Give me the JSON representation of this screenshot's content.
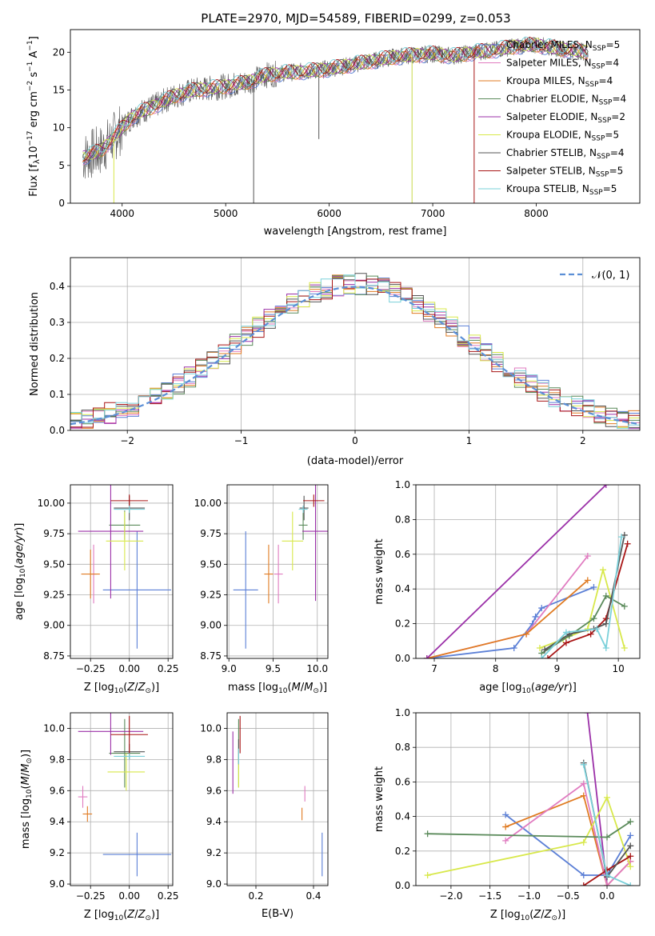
{
  "figure_title": "PLATE=2970, MJD=54589, FIBERID=0299, z=0.053",
  "colors": {
    "chabrier_miles": "#5b7fd6",
    "salpeter_miles": "#e07bc0",
    "kroupa_miles": "#e07b22",
    "chabrier_elodie": "#5a8a5a",
    "salpeter_elodie": "#9b30a8",
    "kroupa_elodie": "#d8e84a",
    "chabrier_stelib": "#555555",
    "salpeter_stelib": "#a81414",
    "kroupa_stelib": "#7ad0da"
  },
  "chart_data": [
    {
      "id": "spectrum",
      "type": "line",
      "xlabel": "wavelength [Angstrom, rest frame]",
      "ylabel": "Flux [f",
      "xlim": [
        3500,
        9000
      ],
      "ylim": [
        0,
        23
      ],
      "xticks": [
        4000,
        5000,
        6000,
        7000,
        8000
      ],
      "yticks": [
        0,
        5,
        10,
        15,
        20
      ],
      "legend_position": "right",
      "legend": [
        {
          "key": "chabrier_miles",
          "label": "Chabrier MILES, N",
          "n": "5"
        },
        {
          "key": "salpeter_miles",
          "label": "Salpeter MILES, N",
          "n": "4"
        },
        {
          "key": "kroupa_miles",
          "label": "Kroupa MILES, N",
          "n": "4"
        },
        {
          "key": "chabrier_elodie",
          "label": "Chabrier ELODIE, N",
          "n": "4"
        },
        {
          "key": "salpeter_elodie",
          "label": "Salpeter ELODIE, N",
          "n": "2"
        },
        {
          "key": "kroupa_elodie",
          "label": "Kroupa ELODIE, N",
          "n": "5"
        },
        {
          "key": "chabrier_stelib",
          "label": "Chabrier STELIB, N",
          "n": "4"
        },
        {
          "key": "salpeter_stelib",
          "label": "Salpeter STELIB, N",
          "n": "5"
        },
        {
          "key": "kroupa_stelib",
          "label": "Kroupa STELIB, N",
          "n": "5"
        }
      ],
      "continuum": [
        [
          3600,
          6
        ],
        [
          3700,
          6.5
        ],
        [
          3800,
          7
        ],
        [
          3900,
          8.5
        ],
        [
          4000,
          10
        ],
        [
          4100,
          11.5
        ],
        [
          4200,
          12.2
        ],
        [
          4300,
          12.8
        ],
        [
          4400,
          13.5
        ],
        [
          4500,
          14.2
        ],
        [
          4700,
          15
        ],
        [
          4900,
          15.3
        ],
        [
          5000,
          15.5
        ],
        [
          5200,
          16
        ],
        [
          5400,
          17
        ],
        [
          5600,
          17.3
        ],
        [
          5800,
          17.5
        ],
        [
          6000,
          17.8
        ],
        [
          6200,
          18.3
        ],
        [
          6400,
          18.8
        ],
        [
          6600,
          19.3
        ],
        [
          6800,
          19.6
        ],
        [
          7000,
          19.8
        ],
        [
          7200,
          19.5
        ],
        [
          7400,
          20
        ],
        [
          7600,
          20.3
        ],
        [
          7800,
          20.8
        ],
        [
          8000,
          21
        ],
        [
          8200,
          20.5
        ],
        [
          8400,
          20.2
        ],
        [
          8500,
          20
        ]
      ],
      "spikes": [
        [
          5270,
          0
        ],
        [
          6800,
          0
        ],
        [
          7400,
          0
        ],
        [
          3920,
          0
        ],
        [
          5900,
          8.5
        ]
      ]
    },
    {
      "id": "residuals",
      "type": "step",
      "xlabel": "(data-model)/error",
      "ylabel": "Normed distribution",
      "xlim": [
        -2.5,
        2.5
      ],
      "ylim": [
        0,
        0.48
      ],
      "xticks": [
        -2,
        -1,
        0,
        1,
        2
      ],
      "yticks": [
        0.0,
        0.1,
        0.2,
        0.3,
        0.4
      ],
      "reference_label": "𝒩(0, 1)",
      "legend_position": "top-right"
    },
    {
      "id": "age_vs_Z",
      "type": "errorbar",
      "xlabel": "Z [log",
      "ylabel": "age  [log",
      "xlim": [
        -0.38,
        0.28
      ],
      "ylim": [
        8.73,
        10.15
      ],
      "xticks": [
        -0.25,
        0.0,
        0.25
      ],
      "yticks": [
        8.75,
        9.0,
        9.25,
        9.5,
        9.75,
        10.0
      ],
      "points": [
        {
          "key": "chabrier_miles",
          "x": 0.05,
          "y": 9.29,
          "xerr": 0.22,
          "yerr": 0.48
        },
        {
          "key": "salpeter_miles",
          "x": -0.23,
          "y": 9.42,
          "xerr": 0.02,
          "yerr": 0.24
        },
        {
          "key": "kroupa_miles",
          "x": -0.25,
          "y": 9.42,
          "xerr": 0.06,
          "yerr": 0.2
        },
        {
          "key": "chabrier_elodie",
          "x": -0.03,
          "y": 9.82,
          "xerr": 0.1,
          "yerr": 0.12
        },
        {
          "key": "salpeter_elodie",
          "x": -0.12,
          "y": 9.77,
          "xerr": 0.21,
          "yerr": 0.55
        },
        {
          "key": "kroupa_elodie",
          "x": -0.03,
          "y": 9.69,
          "xerr": 0.12,
          "yerr": 0.24
        },
        {
          "key": "chabrier_stelib",
          "x": 0.0,
          "y": 9.96,
          "xerr": 0.1,
          "yerr": 0.1
        },
        {
          "key": "salpeter_stelib",
          "x": 0.0,
          "y": 10.02,
          "xerr": 0.12,
          "yerr": 0.05
        },
        {
          "key": "kroupa_stelib",
          "x": 0.0,
          "y": 9.95,
          "xerr": 0.1,
          "yerr": 0.03
        }
      ]
    },
    {
      "id": "age_vs_mass",
      "type": "errorbar",
      "xlabel": "mass [log",
      "xlim": [
        8.98,
        10.12
      ],
      "ylim": [
        8.73,
        10.15
      ],
      "xticks": [
        9.0,
        9.5,
        10.0
      ],
      "yticks": [
        8.75,
        9.0,
        9.25,
        9.5,
        9.75,
        10.0
      ],
      "points": [
        {
          "key": "chabrier_miles",
          "x": 9.19,
          "y": 9.29,
          "xerr": 0.14,
          "yerr": 0.48
        },
        {
          "key": "salpeter_miles",
          "x": 9.56,
          "y": 9.42,
          "xerr": 0.05,
          "yerr": 0.24
        },
        {
          "key": "kroupa_miles",
          "x": 9.45,
          "y": 9.42,
          "xerr": 0.05,
          "yerr": 0.24
        },
        {
          "key": "chabrier_elodie",
          "x": 9.84,
          "y": 9.82,
          "xerr": 0.05,
          "yerr": 0.12
        },
        {
          "key": "salpeter_elodie",
          "x": 9.98,
          "y": 9.77,
          "xerr": 0.15,
          "yerr": 0.57
        },
        {
          "key": "kroupa_elodie",
          "x": 9.72,
          "y": 9.69,
          "xerr": 0.12,
          "yerr": 0.24
        },
        {
          "key": "chabrier_stelib",
          "x": 9.85,
          "y": 9.96,
          "xerr": 0.05,
          "yerr": 0.1
        },
        {
          "key": "salpeter_stelib",
          "x": 9.96,
          "y": 10.02,
          "xerr": 0.12,
          "yerr": 0.05
        },
        {
          "key": "kroupa_stelib",
          "x": 9.84,
          "y": 9.95,
          "xerr": 0.05,
          "yerr": 0.03
        }
      ]
    },
    {
      "id": "weight_vs_age",
      "type": "line",
      "xlabel": "age  [log",
      "ylabel": "mass weight",
      "xlim": [
        6.7,
        10.35
      ],
      "ylim": [
        0,
        1
      ],
      "xticks": [
        7,
        8,
        9,
        10
      ],
      "yticks": [
        0.0,
        0.2,
        0.4,
        0.6,
        0.8,
        1.0
      ],
      "series": [
        {
          "key": "chabrier_miles",
          "x": [
            6.88,
            8.3,
            8.6,
            8.65,
            8.75,
            9.6
          ],
          "y": [
            0.0,
            0.06,
            0.2,
            0.24,
            0.29,
            0.41
          ]
        },
        {
          "key": "salpeter_miles",
          "x": [
            6.88,
            8.5,
            9.5
          ],
          "y": [
            0.0,
            0.14,
            0.59
          ]
        },
        {
          "key": "kroupa_miles",
          "x": [
            6.88,
            8.5,
            9.5
          ],
          "y": [
            0.0,
            0.14,
            0.45
          ]
        },
        {
          "key": "salpeter_elodie",
          "x": [
            6.88,
            9.8
          ],
          "y": [
            0.0,
            1.0
          ]
        },
        {
          "key": "kroupa_elodie",
          "x": [
            8.72,
            9.1,
            9.5,
            9.75,
            10.1
          ],
          "y": [
            0.06,
            0.11,
            0.17,
            0.51,
            0.06
          ]
        },
        {
          "key": "chabrier_elodie",
          "x": [
            8.75,
            9.2,
            9.6,
            9.8,
            10.1
          ],
          "y": [
            0.03,
            0.13,
            0.23,
            0.36,
            0.3
          ]
        },
        {
          "key": "salpeter_stelib",
          "x": [
            8.85,
            9.15,
            9.55,
            9.8,
            10.15
          ],
          "y": [
            0.0,
            0.09,
            0.14,
            0.23,
            0.66
          ]
        },
        {
          "key": "chabrier_stelib",
          "x": [
            8.8,
            9.2,
            9.6,
            9.8,
            10.1
          ],
          "y": [
            0.05,
            0.14,
            0.17,
            0.2,
            0.71
          ]
        },
        {
          "key": "kroupa_stelib",
          "x": [
            8.75,
            9.15,
            9.65,
            9.8,
            10.05
          ],
          "y": [
            0.0,
            0.15,
            0.17,
            0.06,
            0.7
          ]
        }
      ]
    },
    {
      "id": "mass_vs_Z",
      "type": "errorbar",
      "xlabel": "Z [log",
      "ylabel": "mass [log",
      "xlim": [
        -0.38,
        0.28
      ],
      "ylim": [
        8.99,
        10.1
      ],
      "xticks": [
        -0.25,
        0.0,
        0.25
      ],
      "yticks": [
        9.0,
        9.2,
        9.4,
        9.6,
        9.8,
        10.0
      ],
      "points": [
        {
          "key": "chabrier_miles",
          "x": 0.05,
          "y": 9.19,
          "xerr": 0.22,
          "yerr": 0.14
        },
        {
          "key": "salpeter_miles",
          "x": -0.3,
          "y": 9.56,
          "xerr": 0.03,
          "yerr": 0.07
        },
        {
          "key": "kroupa_miles",
          "x": -0.27,
          "y": 9.45,
          "xerr": 0.03,
          "yerr": 0.05
        },
        {
          "key": "chabrier_elodie",
          "x": -0.03,
          "y": 9.84,
          "xerr": 0.1,
          "yerr": 0.22
        },
        {
          "key": "salpeter_elodie",
          "x": -0.12,
          "y": 9.98,
          "xerr": 0.21,
          "yerr": 0.15
        },
        {
          "key": "kroupa_elodie",
          "x": -0.02,
          "y": 9.72,
          "xerr": 0.12,
          "yerr": 0.12
        },
        {
          "key": "chabrier_stelib",
          "x": 0.0,
          "y": 9.85,
          "xerr": 0.1,
          "yerr": 0.05
        },
        {
          "key": "salpeter_stelib",
          "x": 0.0,
          "y": 9.96,
          "xerr": 0.12,
          "yerr": 0.12
        },
        {
          "key": "kroupa_stelib",
          "x": 0.0,
          "y": 9.82,
          "xerr": 0.1,
          "yerr": 0.02
        }
      ]
    },
    {
      "id": "mass_vs_ebv",
      "type": "errorbar",
      "xlabel": "E(B-V)",
      "xlim": [
        0.1,
        0.45
      ],
      "ylim": [
        8.99,
        10.1
      ],
      "xticks": [
        0.2,
        0.4
      ],
      "yticks": [
        9.0,
        9.2,
        9.4,
        9.6,
        9.8,
        10.0
      ],
      "points": [
        {
          "key": "chabrier_miles",
          "x": 0.43,
          "y": 9.19,
          "xerr": 0.0,
          "yerr": 0.14
        },
        {
          "key": "salpeter_miles",
          "x": 0.37,
          "y": 9.58,
          "xerr": 0.0,
          "yerr": 0.05
        },
        {
          "key": "kroupa_miles",
          "x": 0.36,
          "y": 9.45,
          "xerr": 0.0,
          "yerr": 0.04
        },
        {
          "key": "chabrier_elodie",
          "x": 0.14,
          "y": 9.84,
          "xerr": 0.0,
          "yerr": 0.22
        },
        {
          "key": "salpeter_elodie",
          "x": 0.12,
          "y": 9.78,
          "xerr": 0.0,
          "yerr": 0.2
        },
        {
          "key": "kroupa_elodie",
          "x": 0.14,
          "y": 9.72,
          "xerr": 0.0,
          "yerr": 0.1
        },
        {
          "key": "chabrier_stelib",
          "x": 0.14,
          "y": 9.85,
          "xerr": 0.0,
          "yerr": 0.08
        },
        {
          "key": "salpeter_stelib",
          "x": 0.145,
          "y": 9.96,
          "xerr": 0.0,
          "yerr": 0.12
        },
        {
          "key": "kroupa_stelib",
          "x": 0.14,
          "y": 9.82,
          "xerr": 0.0,
          "yerr": 0.05
        }
      ]
    },
    {
      "id": "weight_vs_Z",
      "type": "line",
      "xlabel": "Z [log",
      "ylabel": "mass weight",
      "xlim": [
        -2.45,
        0.42
      ],
      "ylim": [
        0,
        1
      ],
      "xticks": [
        -2.0,
        -1.5,
        -1.0,
        -0.5,
        0.0
      ],
      "yticks": [
        0.0,
        0.2,
        0.4,
        0.6,
        0.8,
        1.0
      ],
      "series": [
        {
          "key": "salpeter_elodie",
          "x": [
            -0.25,
            0.0
          ],
          "y": [
            1.0,
            0.0
          ]
        },
        {
          "key": "chabrier_miles",
          "x": [
            -1.3,
            -0.3,
            0.0,
            0.3
          ],
          "y": [
            0.41,
            0.06,
            0.06,
            0.29
          ]
        },
        {
          "key": "kroupa_miles",
          "x": [
            -1.3,
            -0.3,
            0.0,
            0.3
          ],
          "y": [
            0.34,
            0.52,
            0.0,
            0.14
          ]
        },
        {
          "key": "salpeter_miles",
          "x": [
            -1.3,
            -0.3,
            0.0,
            0.3
          ],
          "y": [
            0.26,
            0.59,
            0.0,
            0.14
          ]
        },
        {
          "key": "kroupa_elodie",
          "x": [
            -2.3,
            -0.3,
            0.0,
            0.3
          ],
          "y": [
            0.06,
            0.25,
            0.51,
            0.11
          ]
        },
        {
          "key": "chabrier_elodie",
          "x": [
            -2.3,
            0.0,
            0.3
          ],
          "y": [
            0.3,
            0.28,
            0.37
          ]
        },
        {
          "key": "salpeter_stelib",
          "x": [
            -0.3,
            0.0,
            0.3
          ],
          "y": [
            0.0,
            0.09,
            0.17
          ]
        },
        {
          "key": "chabrier_stelib",
          "x": [
            -0.3,
            0.0,
            0.3
          ],
          "y": [
            0.71,
            0.05,
            0.23
          ]
        },
        {
          "key": "kroupa_stelib",
          "x": [
            -0.3,
            0.0,
            0.3
          ],
          "y": [
            0.7,
            0.06,
            0.0
          ]
        }
      ]
    }
  ]
}
